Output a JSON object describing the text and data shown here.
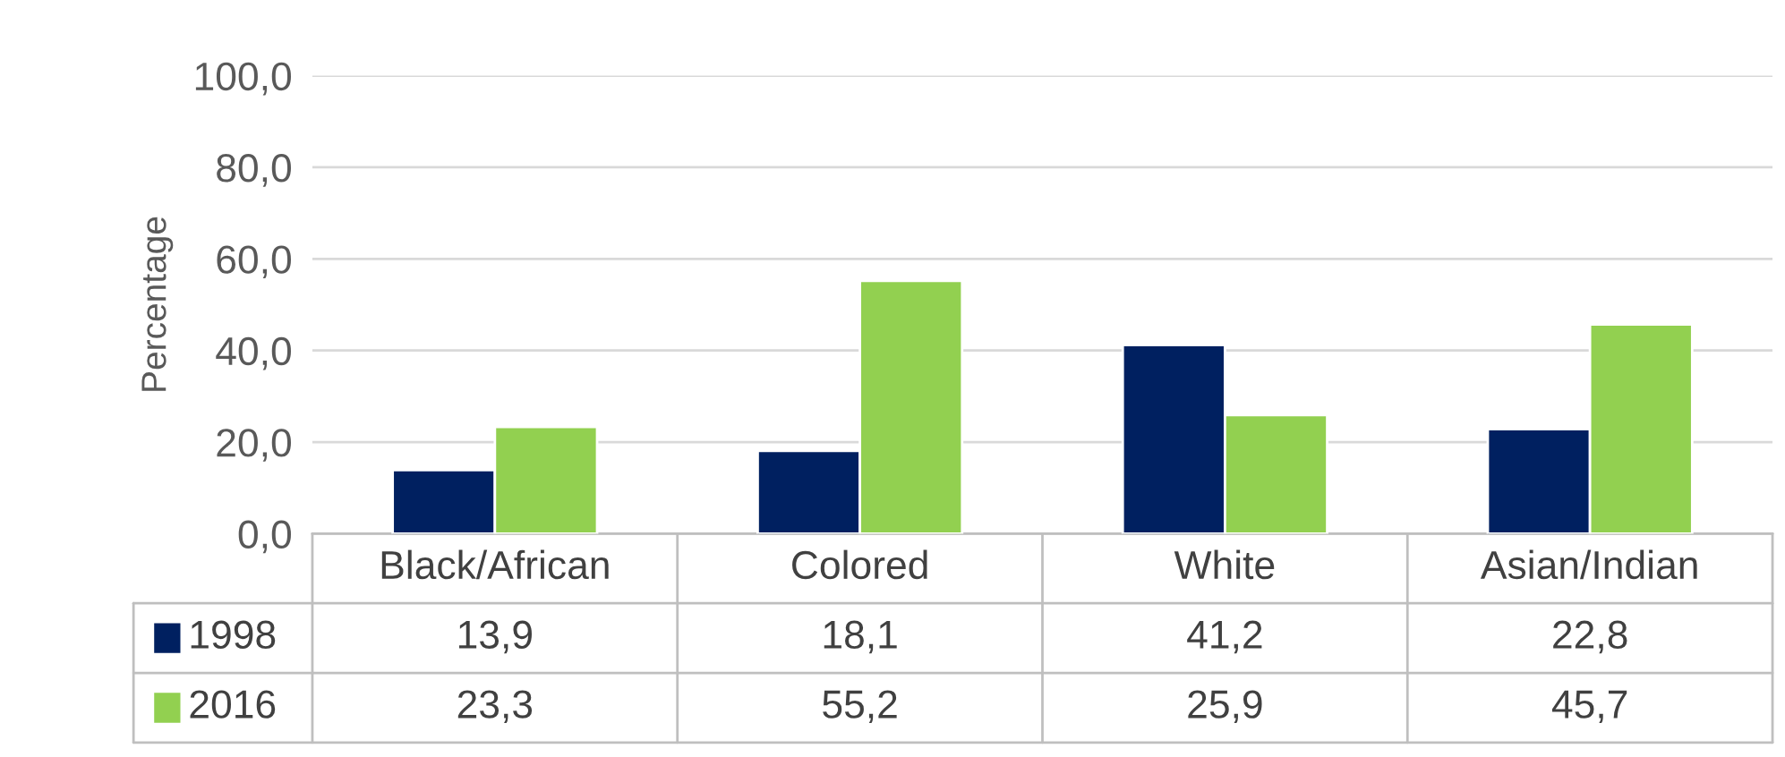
{
  "chart_data": {
    "type": "bar",
    "ylabel": "Percentage",
    "categories": [
      "Black/African",
      "Colored",
      "White",
      "Asian/Indian"
    ],
    "series": [
      {
        "name": "1998",
        "color": "#002060",
        "values": [
          13.9,
          18.1,
          41.2,
          22.8
        ],
        "value_labels": [
          "13,9",
          "18,1",
          "41,2",
          "22,8"
        ]
      },
      {
        "name": "2016",
        "color": "#92d050",
        "values": [
          23.3,
          55.2,
          25.9,
          45.7
        ],
        "value_labels": [
          "23,3",
          "55,2",
          "25,9",
          "45,7"
        ]
      }
    ],
    "ylim": [
      0,
      100
    ],
    "yticks": [
      {
        "value": 0,
        "label": "0,0"
      },
      {
        "value": 20,
        "label": "20,0"
      },
      {
        "value": 40,
        "label": "40,0"
      },
      {
        "value": 60,
        "label": "60,0"
      },
      {
        "value": 80,
        "label": "80,0"
      },
      {
        "value": 100,
        "label": "100,0"
      }
    ],
    "grid": "y",
    "legend": "bottom left"
  }
}
